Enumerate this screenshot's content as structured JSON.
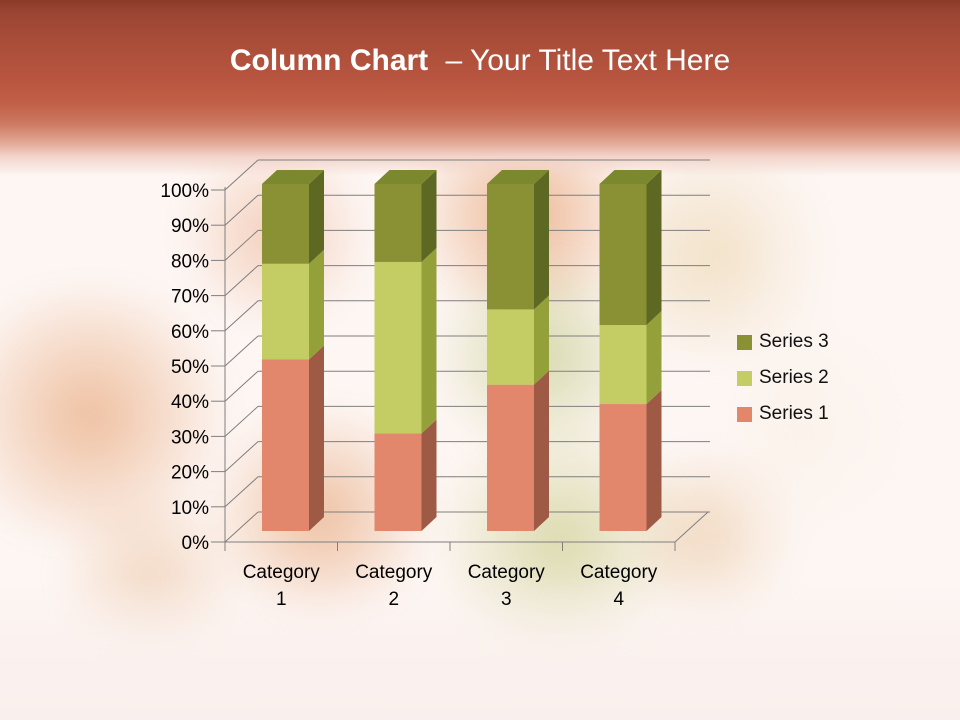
{
  "slide": {
    "title": {
      "bold": "Column Chart",
      "regular": "– Your Title Text Here"
    },
    "title_color": "#ffffff",
    "header_gradient": {
      "top": "#8C3A29",
      "middle": "#C05E46",
      "fade_to": "#FDF6F3"
    },
    "background_description": "faded photo of multicolored pasta nests"
  },
  "chart_data": {
    "type": "bar",
    "subtype": "3d-100-percent-stacked-column",
    "title": "",
    "xlabel": "",
    "ylabel": "",
    "categories": [
      "Category 1",
      "Category 2",
      "Category 3",
      "Category 4"
    ],
    "stack_order_bottom_to_top": [
      "Series 1",
      "Series 2",
      "Series 3"
    ],
    "series": [
      {
        "name": "Series 1",
        "values": [
          4.3,
          2.5,
          3.5,
          4.5
        ],
        "percent_of_stack": [
          49.4,
          28.1,
          42.2,
          36.6
        ],
        "color": "#E2866C",
        "color_side": "#9E5A45",
        "color_top": "#C9765F"
      },
      {
        "name": "Series 2",
        "values": [
          2.4,
          4.4,
          1.8,
          2.8
        ],
        "percent_of_stack": [
          27.6,
          49.4,
          21.7,
          22.8
        ],
        "color": "#C3CD63",
        "color_side": "#94A13B",
        "color_top": "#B7C254"
      },
      {
        "name": "Series 3",
        "values": [
          2.0,
          2.0,
          3.0,
          5.0
        ],
        "percent_of_stack": [
          23.0,
          22.5,
          36.1,
          40.7
        ],
        "color": "#8A9134",
        "color_side": "#5D6822",
        "color_top": "#7B882E"
      }
    ],
    "y_axis": {
      "ticks": [
        "0%",
        "10%",
        "20%",
        "30%",
        "40%",
        "50%",
        "60%",
        "70%",
        "80%",
        "90%",
        "100%"
      ],
      "range": [
        0,
        100
      ]
    },
    "legend": {
      "position": "right",
      "entries_top_to_bottom": [
        "Series 3",
        "Series 2",
        "Series 1"
      ]
    },
    "gridlines": {
      "visible": true,
      "color": "#7F7F7F"
    },
    "axis_text_color": "#000000"
  }
}
